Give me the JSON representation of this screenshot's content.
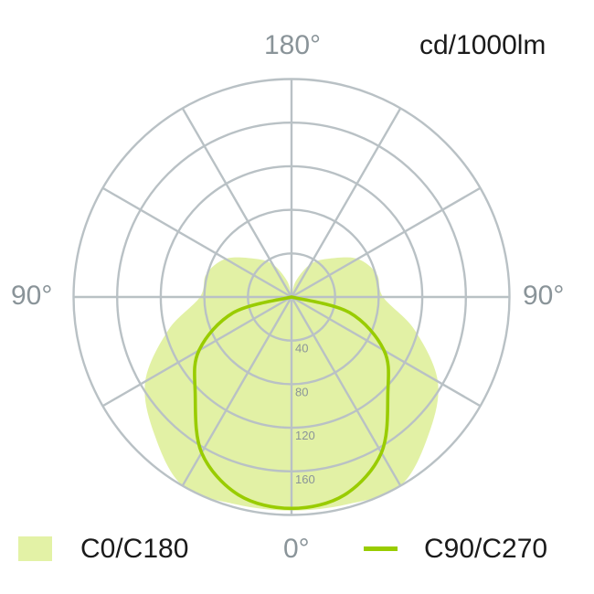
{
  "chart_data": {
    "type": "polar",
    "unit_label": "cd/1000lm",
    "angle_labels": {
      "top": "180°",
      "left": "90°",
      "right": "90°",
      "bottom": "0°"
    },
    "radial_ticks": [
      40,
      80,
      120,
      160
    ],
    "rmax": 200,
    "angle_step": 30,
    "grid": true,
    "angles": [
      0,
      15,
      30,
      45,
      60,
      75,
      90,
      105,
      120,
      135,
      150,
      165,
      180
    ],
    "series": [
      {
        "name": "C0/C180",
        "style": "fill",
        "color": "#e0f0a0",
        "values": [
          196,
          197,
          200,
          178,
          155,
          117,
          84,
          81,
          70,
          50,
          35,
          15,
          0
        ]
      },
      {
        "name": "C90/C270",
        "style": "line",
        "color": "#99cc00",
        "values": [
          194,
          188,
          165,
          125,
          98,
          55,
          0,
          0,
          0,
          0,
          0,
          0,
          0
        ]
      }
    ],
    "legend_placement": "bottom"
  },
  "colors": {
    "grid": "#b9c1c5",
    "text_gray": "#8a9499",
    "text_dark": "#1a1a1a"
  }
}
